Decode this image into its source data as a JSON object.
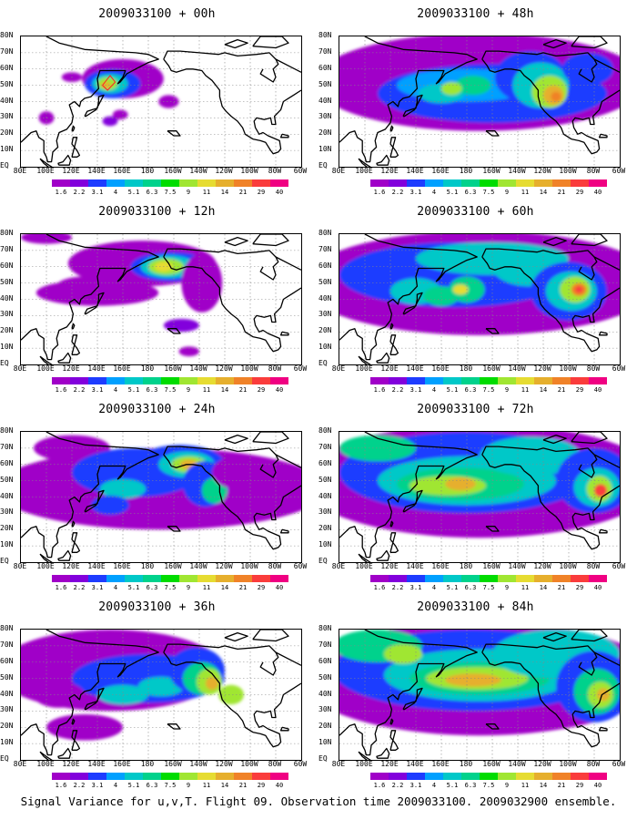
{
  "caption": "Signal Variance for u,v,T. Flight 09. Observation time 2009033100. 2009032900 ensemble.",
  "lat_labels": [
    "80N",
    "70N",
    "60N",
    "50N",
    "40N",
    "30N",
    "20N",
    "10N",
    "EQ"
  ],
  "lon_labels": [
    "80E",
    "100E",
    "120E",
    "140E",
    "160E",
    "180",
    "160W",
    "140W",
    "120W",
    "100W",
    "80W",
    "60W"
  ],
  "colorbar": {
    "labels": [
      "1.6",
      "2.2",
      "3.1",
      "4",
      "5.1",
      "6.3",
      "7.5",
      "9",
      "11",
      "14",
      "21",
      "29",
      "40"
    ],
    "colors": [
      "#a000c8",
      "#8200dc",
      "#1e3cff",
      "#00a0ff",
      "#00c8c8",
      "#00d28c",
      "#00dc00",
      "#a0e632",
      "#e6dc32",
      "#e6af2d",
      "#f08228",
      "#fa3c3c",
      "#f00082"
    ]
  },
  "panels": [
    {
      "title": "2009033100 + 00h",
      "level": 0
    },
    {
      "title": "2009033100 + 12h",
      "level": 1
    },
    {
      "title": "2009033100 + 24h",
      "level": 2
    },
    {
      "title": "2009033100 + 36h",
      "level": 3
    },
    {
      "title": "2009033100 + 48h",
      "level": 4
    },
    {
      "title": "2009033100 + 60h",
      "level": 5
    },
    {
      "title": "2009033100 + 72h",
      "level": 6
    },
    {
      "title": "2009033100 + 84h",
      "level": 7
    }
  ],
  "chart_data": {
    "type": "heatmap",
    "title": "Signal Variance for u,v,T. Flight 09. Observation time 2009033100. 2009032900 ensemble.",
    "panel_titles": [
      "2009033100 + 00h",
      "2009033100 + 12h",
      "2009033100 + 24h",
      "2009033100 + 36h",
      "2009033100 + 48h",
      "2009033100 + 60h",
      "2009033100 + 72h",
      "2009033100 + 84h"
    ],
    "x_range": [
      "80E",
      "60W"
    ],
    "y_range": [
      "EQ",
      "80N"
    ],
    "color_levels": [
      1.6,
      2.2,
      3.1,
      4,
      5.1,
      6.3,
      7.5,
      9,
      11,
      14,
      21,
      29,
      40
    ],
    "grid": true
  }
}
